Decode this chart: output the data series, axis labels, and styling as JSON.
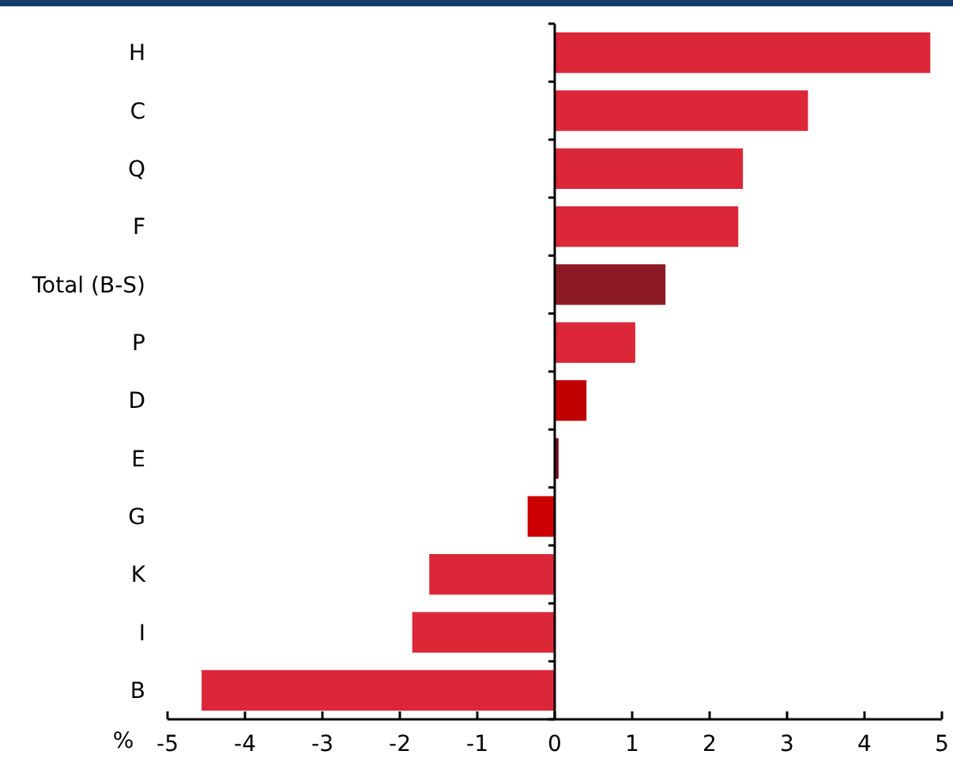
{
  "chart_data": {
    "type": "bar",
    "orientation": "horizontal",
    "xlabel": "%",
    "categories": [
      "H",
      "C",
      "Q",
      "F",
      "Total (B-S)",
      "P",
      "D",
      "E",
      "G",
      "K",
      "I",
      "B"
    ],
    "values": [
      4.85,
      3.27,
      2.43,
      2.37,
      1.43,
      1.04,
      0.41,
      0.05,
      -0.35,
      -1.62,
      -1.84,
      -4.56
    ],
    "colors": [
      "#db2737",
      "#db2737",
      "#db2737",
      "#db2737",
      "#8b1a24",
      "#db2737",
      "#c00000",
      "#7a1020",
      "#cc0000",
      "#db2737",
      "#db2737",
      "#db2737"
    ],
    "xlim": [
      -5,
      5
    ],
    "xticks": [
      -5,
      -4,
      -3,
      -2,
      -1,
      0,
      1,
      2,
      3,
      4,
      5
    ]
  }
}
